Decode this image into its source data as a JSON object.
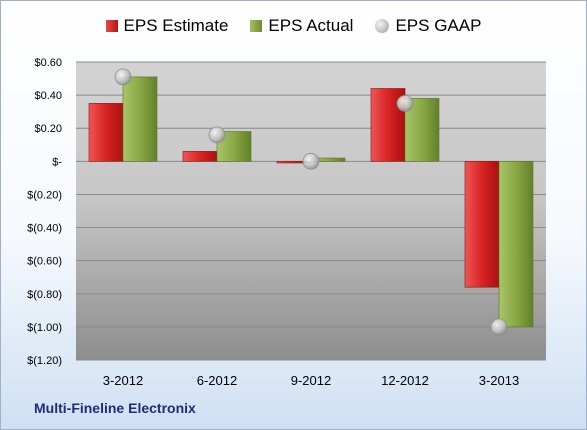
{
  "chart_data": {
    "type": "bar",
    "categories": [
      "3-2012",
      "6-2012",
      "9-2012",
      "12-2012",
      "3-2013"
    ],
    "series": [
      {
        "name": "EPS Estimate",
        "type": "bar",
        "color": "#c81e1e",
        "values": [
          0.35,
          0.06,
          -0.01,
          0.44,
          -0.76
        ]
      },
      {
        "name": "EPS Actual",
        "type": "bar",
        "color": "#86a33f",
        "values": [
          0.51,
          0.18,
          0.02,
          0.38,
          -1.0
        ]
      },
      {
        "name": "EPS GAAP",
        "type": "marker",
        "color": "#b9b9b9",
        "values": [
          0.51,
          0.16,
          0.0,
          0.35,
          -1.0
        ]
      }
    ],
    "yticks": [
      "$0.60",
      "$0.40",
      "$0.20",
      "$-",
      "$(0.20)",
      "$(0.40)",
      "$(0.60)",
      "$(0.80)",
      "$(1.00)",
      "$(1.20)"
    ],
    "ylim": [
      -1.2,
      0.6
    ],
    "grid": true,
    "legend_position": "top"
  },
  "company_name": "Multi-Fineline Electronix"
}
